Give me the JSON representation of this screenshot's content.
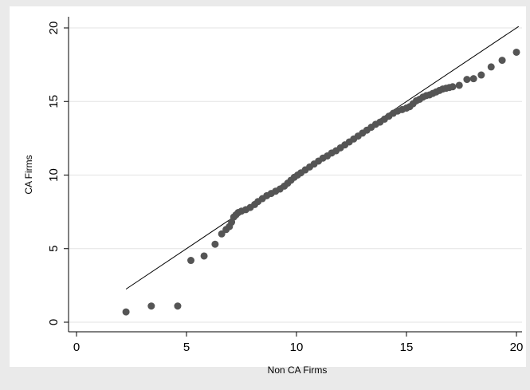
{
  "chart_data": {
    "type": "scatter",
    "title": "",
    "xlabel": "Non CA Firms",
    "ylabel": "CA Firms",
    "xlim": [
      0,
      20
    ],
    "ylim": [
      0,
      20
    ],
    "xticks": [
      0,
      5,
      10,
      15,
      20
    ],
    "yticks": [
      0,
      5,
      10,
      15,
      20
    ],
    "grid": "horizontal",
    "legend": "none",
    "colors": {
      "outer_background": "#eaeaea",
      "plot_background": "#ffffff",
      "grid": "#e3e3e3",
      "points": "#555555",
      "reference_line": "#000000"
    },
    "reference_line": {
      "x": [
        2.25,
        20.1
      ],
      "y": [
        2.25,
        20.1
      ]
    },
    "series": [
      {
        "points": [
          [
            2.25,
            0.7
          ],
          [
            3.4,
            1.1
          ],
          [
            4.6,
            1.1
          ],
          [
            5.2,
            4.2
          ],
          [
            5.8,
            4.5
          ],
          [
            6.3,
            5.3
          ],
          [
            6.6,
            6.0
          ],
          [
            6.8,
            6.3
          ],
          [
            6.95,
            6.5
          ],
          [
            7.05,
            6.8
          ],
          [
            7.15,
            7.15
          ],
          [
            7.25,
            7.3
          ],
          [
            7.35,
            7.45
          ],
          [
            7.5,
            7.55
          ],
          [
            7.7,
            7.65
          ],
          [
            7.9,
            7.8
          ],
          [
            8.1,
            8.0
          ],
          [
            8.25,
            8.2
          ],
          [
            8.45,
            8.4
          ],
          [
            8.65,
            8.6
          ],
          [
            8.85,
            8.75
          ],
          [
            9.05,
            8.9
          ],
          [
            9.25,
            9.05
          ],
          [
            9.45,
            9.25
          ],
          [
            9.6,
            9.45
          ],
          [
            9.75,
            9.65
          ],
          [
            9.9,
            9.85
          ],
          [
            10.05,
            10.0
          ],
          [
            10.2,
            10.15
          ],
          [
            10.4,
            10.35
          ],
          [
            10.6,
            10.55
          ],
          [
            10.8,
            10.75
          ],
          [
            11.0,
            10.95
          ],
          [
            11.2,
            11.15
          ],
          [
            11.4,
            11.3
          ],
          [
            11.6,
            11.5
          ],
          [
            11.8,
            11.65
          ],
          [
            12.0,
            11.85
          ],
          [
            12.2,
            12.05
          ],
          [
            12.4,
            12.25
          ],
          [
            12.6,
            12.45
          ],
          [
            12.8,
            12.65
          ],
          [
            13.0,
            12.85
          ],
          [
            13.2,
            13.05
          ],
          [
            13.4,
            13.25
          ],
          [
            13.6,
            13.45
          ],
          [
            13.8,
            13.6
          ],
          [
            14.0,
            13.8
          ],
          [
            14.2,
            14.0
          ],
          [
            14.4,
            14.2
          ],
          [
            14.6,
            14.35
          ],
          [
            14.8,
            14.45
          ],
          [
            15.0,
            14.55
          ],
          [
            15.15,
            14.65
          ],
          [
            15.3,
            14.85
          ],
          [
            15.45,
            15.05
          ],
          [
            15.6,
            15.15
          ],
          [
            15.75,
            15.3
          ],
          [
            15.9,
            15.4
          ],
          [
            16.05,
            15.45
          ],
          [
            16.2,
            15.55
          ],
          [
            16.35,
            15.65
          ],
          [
            16.5,
            15.75
          ],
          [
            16.65,
            15.85
          ],
          [
            16.8,
            15.9
          ],
          [
            16.95,
            15.95
          ],
          [
            17.1,
            16.0
          ],
          [
            17.4,
            16.1
          ],
          [
            17.75,
            16.5
          ],
          [
            18.05,
            16.55
          ],
          [
            18.4,
            16.8
          ],
          [
            18.85,
            17.35
          ],
          [
            19.35,
            17.8
          ],
          [
            20.0,
            18.35
          ]
        ]
      }
    ]
  }
}
